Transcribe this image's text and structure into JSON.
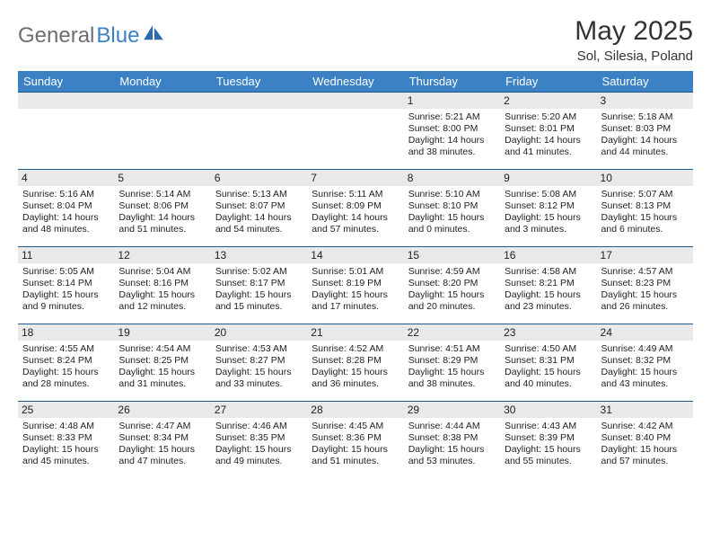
{
  "brand": {
    "part1": "General",
    "part2": "Blue"
  },
  "title": "May 2025",
  "location": "Sol, Silesia, Poland",
  "colors": {
    "header_bg": "#3b81c3",
    "header_text": "#ffffff",
    "row_stripe": "#e9e9e9",
    "border": "#205a8c"
  },
  "weekdays": [
    "Sunday",
    "Monday",
    "Tuesday",
    "Wednesday",
    "Thursday",
    "Friday",
    "Saturday"
  ],
  "weeks": [
    [
      null,
      null,
      null,
      null,
      {
        "n": "1",
        "sr": "5:21 AM",
        "ss": "8:00 PM",
        "dl": "14 hours and 38 minutes."
      },
      {
        "n": "2",
        "sr": "5:20 AM",
        "ss": "8:01 PM",
        "dl": "14 hours and 41 minutes."
      },
      {
        "n": "3",
        "sr": "5:18 AM",
        "ss": "8:03 PM",
        "dl": "14 hours and 44 minutes."
      }
    ],
    [
      {
        "n": "4",
        "sr": "5:16 AM",
        "ss": "8:04 PM",
        "dl": "14 hours and 48 minutes."
      },
      {
        "n": "5",
        "sr": "5:14 AM",
        "ss": "8:06 PM",
        "dl": "14 hours and 51 minutes."
      },
      {
        "n": "6",
        "sr": "5:13 AM",
        "ss": "8:07 PM",
        "dl": "14 hours and 54 minutes."
      },
      {
        "n": "7",
        "sr": "5:11 AM",
        "ss": "8:09 PM",
        "dl": "14 hours and 57 minutes."
      },
      {
        "n": "8",
        "sr": "5:10 AM",
        "ss": "8:10 PM",
        "dl": "15 hours and 0 minutes."
      },
      {
        "n": "9",
        "sr": "5:08 AM",
        "ss": "8:12 PM",
        "dl": "15 hours and 3 minutes."
      },
      {
        "n": "10",
        "sr": "5:07 AM",
        "ss": "8:13 PM",
        "dl": "15 hours and 6 minutes."
      }
    ],
    [
      {
        "n": "11",
        "sr": "5:05 AM",
        "ss": "8:14 PM",
        "dl": "15 hours and 9 minutes."
      },
      {
        "n": "12",
        "sr": "5:04 AM",
        "ss": "8:16 PM",
        "dl": "15 hours and 12 minutes."
      },
      {
        "n": "13",
        "sr": "5:02 AM",
        "ss": "8:17 PM",
        "dl": "15 hours and 15 minutes."
      },
      {
        "n": "14",
        "sr": "5:01 AM",
        "ss": "8:19 PM",
        "dl": "15 hours and 17 minutes."
      },
      {
        "n": "15",
        "sr": "4:59 AM",
        "ss": "8:20 PM",
        "dl": "15 hours and 20 minutes."
      },
      {
        "n": "16",
        "sr": "4:58 AM",
        "ss": "8:21 PM",
        "dl": "15 hours and 23 minutes."
      },
      {
        "n": "17",
        "sr": "4:57 AM",
        "ss": "8:23 PM",
        "dl": "15 hours and 26 minutes."
      }
    ],
    [
      {
        "n": "18",
        "sr": "4:55 AM",
        "ss": "8:24 PM",
        "dl": "15 hours and 28 minutes."
      },
      {
        "n": "19",
        "sr": "4:54 AM",
        "ss": "8:25 PM",
        "dl": "15 hours and 31 minutes."
      },
      {
        "n": "20",
        "sr": "4:53 AM",
        "ss": "8:27 PM",
        "dl": "15 hours and 33 minutes."
      },
      {
        "n": "21",
        "sr": "4:52 AM",
        "ss": "8:28 PM",
        "dl": "15 hours and 36 minutes."
      },
      {
        "n": "22",
        "sr": "4:51 AM",
        "ss": "8:29 PM",
        "dl": "15 hours and 38 minutes."
      },
      {
        "n": "23",
        "sr": "4:50 AM",
        "ss": "8:31 PM",
        "dl": "15 hours and 40 minutes."
      },
      {
        "n": "24",
        "sr": "4:49 AM",
        "ss": "8:32 PM",
        "dl": "15 hours and 43 minutes."
      }
    ],
    [
      {
        "n": "25",
        "sr": "4:48 AM",
        "ss": "8:33 PM",
        "dl": "15 hours and 45 minutes."
      },
      {
        "n": "26",
        "sr": "4:47 AM",
        "ss": "8:34 PM",
        "dl": "15 hours and 47 minutes."
      },
      {
        "n": "27",
        "sr": "4:46 AM",
        "ss": "8:35 PM",
        "dl": "15 hours and 49 minutes."
      },
      {
        "n": "28",
        "sr": "4:45 AM",
        "ss": "8:36 PM",
        "dl": "15 hours and 51 minutes."
      },
      {
        "n": "29",
        "sr": "4:44 AM",
        "ss": "8:38 PM",
        "dl": "15 hours and 53 minutes."
      },
      {
        "n": "30",
        "sr": "4:43 AM",
        "ss": "8:39 PM",
        "dl": "15 hours and 55 minutes."
      },
      {
        "n": "31",
        "sr": "4:42 AM",
        "ss": "8:40 PM",
        "dl": "15 hours and 57 minutes."
      }
    ]
  ],
  "labels": {
    "sunrise": "Sunrise:",
    "sunset": "Sunset:",
    "daylight": "Daylight:"
  }
}
